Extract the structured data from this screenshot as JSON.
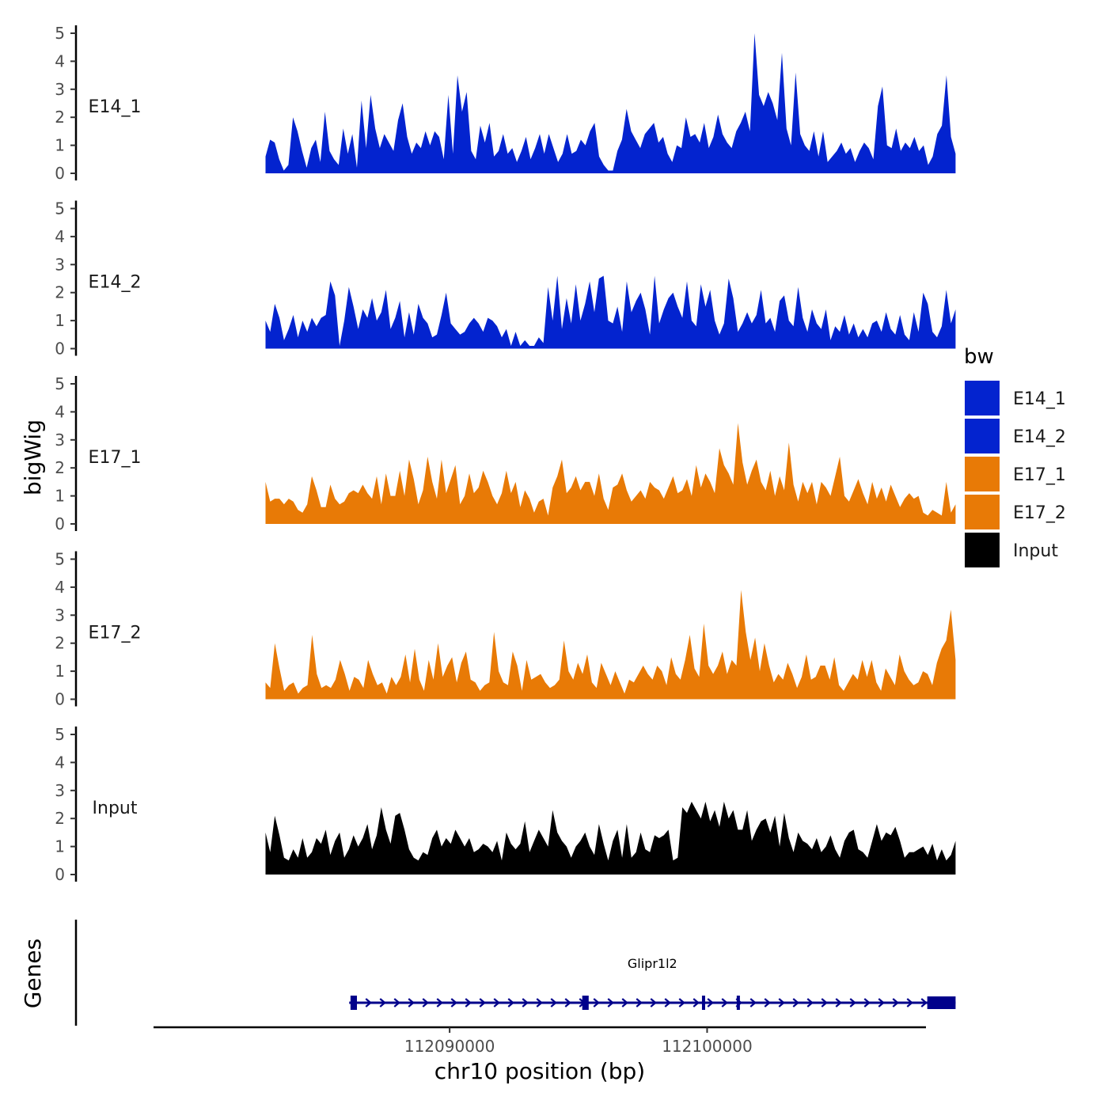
{
  "chart_data": {
    "type": "area",
    "y_axis_title": "bigWig",
    "gene_axis_title": "Genes",
    "x_axis_title": "chr10 position (bp)",
    "x_range": [
      112078500,
      112108500
    ],
    "region_start": 112082850,
    "region_end": 112109650,
    "x_ticks": [
      {
        "value": 112090000,
        "label": "112090000"
      },
      {
        "value": 112100000,
        "label": "112100000"
      }
    ],
    "ylim": [
      0,
      5
    ],
    "y_ticks": [
      {
        "value": 0,
        "label": "0"
      },
      {
        "value": 1,
        "label": "1"
      },
      {
        "value": 2,
        "label": "2"
      },
      {
        "value": 3,
        "label": "3"
      },
      {
        "value": 4,
        "label": "4"
      },
      {
        "value": 5,
        "label": "5"
      }
    ],
    "series": [
      {
        "name": "E14_1",
        "color": "#0323CF",
        "values": [
          0.6,
          1.2,
          1.1,
          0.5,
          0.1,
          0.3,
          2.0,
          1.5,
          0.8,
          0.2,
          0.9,
          1.2,
          0.4,
          2.2,
          0.8,
          0.5,
          0.3,
          1.6,
          0.7,
          1.4,
          0.2,
          2.6,
          0.9,
          2.8,
          1.6,
          0.9,
          1.4,
          1.1,
          0.8,
          1.9,
          2.5,
          1.3,
          0.7,
          1.1,
          0.9,
          1.5,
          1.0,
          1.5,
          1.3,
          0.5,
          2.8,
          0.7,
          3.5,
          2.2,
          2.9,
          0.8,
          0.5,
          1.7,
          1.1,
          1.8,
          0.6,
          0.8,
          1.4,
          0.7,
          0.9,
          0.4,
          0.8,
          1.3,
          0.5,
          0.9,
          1.4,
          0.7,
          1.4,
          0.9,
          0.4,
          0.7,
          1.4,
          0.7,
          0.8,
          1.2,
          1.0,
          1.5,
          1.8,
          0.6,
          0.3,
          0.1,
          0.1,
          0.8,
          1.2,
          2.3,
          1.5,
          1.2,
          0.9,
          1.4,
          1.6,
          1.8,
          1.1,
          1.3,
          0.7,
          0.4,
          1.0,
          0.9,
          2.0,
          1.3,
          1.4,
          1.1,
          1.8,
          0.9,
          1.3,
          2.1,
          1.4,
          1.1,
          0.9,
          1.5,
          1.8,
          2.2,
          1.5,
          5.0,
          2.8,
          2.4,
          2.9,
          2.5,
          1.9,
          4.3,
          1.6,
          1.0,
          3.6,
          1.4,
          1.0,
          0.8,
          1.5,
          0.6,
          1.5,
          0.4,
          0.6,
          0.8,
          1.1,
          0.7,
          0.9,
          0.4,
          0.8,
          1.1,
          0.9,
          0.5,
          2.4,
          3.1,
          1.0,
          0.9,
          1.6,
          0.8,
          1.1,
          0.9,
          1.3,
          0.8,
          1.0,
          0.3,
          0.6,
          1.4,
          1.7,
          3.5,
          1.3,
          0.7
        ]
      },
      {
        "name": "E14_2",
        "color": "#0323CF",
        "values": [
          1.0,
          0.6,
          1.6,
          1.1,
          0.3,
          0.7,
          1.2,
          0.4,
          1.0,
          0.6,
          1.1,
          0.8,
          1.1,
          1.2,
          2.4,
          1.9,
          0.1,
          1.0,
          2.2,
          1.5,
          0.7,
          1.4,
          1.1,
          1.8,
          1.0,
          1.3,
          2.1,
          0.7,
          1.1,
          1.7,
          0.4,
          1.3,
          0.5,
          1.6,
          1.1,
          0.9,
          0.4,
          0.5,
          1.2,
          2.0,
          0.9,
          0.7,
          0.5,
          0.6,
          0.9,
          1.1,
          0.9,
          0.6,
          1.1,
          1.0,
          0.8,
          0.4,
          0.7,
          0.1,
          0.6,
          0.1,
          0.3,
          0.1,
          0.1,
          0.4,
          0.2,
          2.2,
          1.0,
          2.6,
          0.7,
          1.8,
          0.9,
          2.3,
          1.0,
          1.6,
          2.4,
          1.3,
          2.5,
          2.6,
          1.0,
          0.9,
          1.5,
          0.6,
          2.4,
          1.3,
          1.7,
          2.0,
          1.4,
          0.5,
          2.6,
          0.9,
          1.4,
          1.8,
          2.0,
          1.5,
          1.1,
          2.4,
          1.0,
          0.8,
          2.3,
          1.5,
          2.1,
          1.0,
          0.5,
          0.9,
          2.5,
          1.8,
          0.6,
          0.9,
          1.3,
          0.9,
          1.2,
          2.1,
          0.9,
          1.1,
          0.6,
          1.7,
          1.9,
          1.0,
          0.8,
          2.2,
          1.1,
          0.6,
          1.4,
          0.9,
          0.7,
          1.4,
          0.3,
          0.8,
          0.6,
          1.2,
          0.5,
          0.9,
          0.4,
          0.7,
          0.4,
          0.9,
          1.0,
          0.6,
          1.3,
          0.7,
          0.5,
          1.2,
          0.5,
          0.3,
          1.3,
          0.6,
          2.0,
          1.6,
          0.6,
          0.4,
          0.8,
          2.1,
          0.9,
          1.4
        ]
      },
      {
        "name": "E17_1",
        "color": "#E87A06",
        "values": [
          1.5,
          0.8,
          0.9,
          0.9,
          0.7,
          0.9,
          0.8,
          0.5,
          0.4,
          0.7,
          1.7,
          1.2,
          0.6,
          0.6,
          1.4,
          0.9,
          0.7,
          0.8,
          1.1,
          1.2,
          1.1,
          1.4,
          1.1,
          0.9,
          1.7,
          0.7,
          1.8,
          1.0,
          1.0,
          1.9,
          1.0,
          2.3,
          1.6,
          0.7,
          1.2,
          2.4,
          1.5,
          0.9,
          2.3,
          1.1,
          1.6,
          2.1,
          0.7,
          1.0,
          1.8,
          1.1,
          1.3,
          1.9,
          1.5,
          1.0,
          0.7,
          1.1,
          1.9,
          1.1,
          1.5,
          0.6,
          1.2,
          0.9,
          0.4,
          0.8,
          0.9,
          0.3,
          1.3,
          1.7,
          2.3,
          1.1,
          1.3,
          1.7,
          1.2,
          1.5,
          1.5,
          1.0,
          1.8,
          0.9,
          0.5,
          1.3,
          1.4,
          1.8,
          1.2,
          0.8,
          1.0,
          1.2,
          0.9,
          1.5,
          1.3,
          1.2,
          0.9,
          1.3,
          1.7,
          1.1,
          1.2,
          1.6,
          1.0,
          2.1,
          1.3,
          1.8,
          1.5,
          1.1,
          2.7,
          2.1,
          1.8,
          1.4,
          3.6,
          2.2,
          1.4,
          1.9,
          2.3,
          1.5,
          1.2,
          1.9,
          1.0,
          1.7,
          1.2,
          2.9,
          1.4,
          0.8,
          1.5,
          1.1,
          1.5,
          0.7,
          1.5,
          1.3,
          1.0,
          1.7,
          2.4,
          1.0,
          0.8,
          1.2,
          1.6,
          1.1,
          0.7,
          1.5,
          0.9,
          1.3,
          0.8,
          1.4,
          1.0,
          0.6,
          0.9,
          1.1,
          0.9,
          1.0,
          0.4,
          0.3,
          0.5,
          0.4,
          0.3,
          1.5,
          0.4,
          0.7
        ]
      },
      {
        "name": "E17_2",
        "color": "#E87A06",
        "values": [
          0.6,
          0.4,
          2.0,
          1.1,
          0.3,
          0.5,
          0.6,
          0.2,
          0.4,
          0.5,
          2.3,
          0.9,
          0.4,
          0.5,
          0.4,
          0.7,
          1.4,
          0.9,
          0.3,
          0.8,
          0.7,
          0.4,
          1.4,
          0.9,
          0.5,
          0.6,
          0.2,
          0.8,
          0.5,
          0.8,
          1.6,
          0.6,
          1.8,
          0.7,
          0.3,
          1.4,
          0.7,
          2.0,
          0.8,
          1.2,
          1.5,
          0.6,
          1.3,
          1.7,
          0.7,
          0.6,
          0.3,
          0.5,
          0.6,
          2.4,
          1.0,
          0.6,
          0.5,
          1.7,
          1.2,
          0.3,
          1.4,
          0.7,
          0.8,
          0.9,
          0.6,
          0.4,
          0.5,
          0.7,
          2.1,
          1.0,
          0.7,
          1.3,
          0.9,
          1.6,
          0.6,
          0.4,
          1.3,
          0.9,
          0.5,
          1.0,
          0.6,
          0.2,
          0.7,
          0.6,
          0.9,
          1.2,
          0.9,
          0.7,
          1.2,
          1.0,
          0.5,
          1.5,
          0.9,
          0.7,
          1.4,
          2.3,
          1.1,
          0.8,
          2.7,
          1.2,
          0.9,
          1.2,
          1.7,
          0.9,
          1.4,
          1.2,
          3.9,
          2.4,
          1.4,
          2.2,
          1.0,
          2.0,
          1.2,
          0.6,
          0.9,
          0.7,
          1.3,
          0.9,
          0.4,
          0.8,
          1.6,
          0.7,
          0.8,
          1.2,
          1.2,
          0.7,
          1.5,
          0.5,
          0.3,
          0.6,
          0.9,
          0.7,
          1.4,
          0.8,
          1.4,
          0.6,
          0.3,
          1.1,
          0.8,
          0.5,
          1.6,
          1.0,
          0.7,
          0.5,
          0.6,
          1.0,
          0.9,
          0.5,
          1.3,
          1.8,
          2.1,
          3.2,
          1.4
        ]
      },
      {
        "name": "Input",
        "color": "#000000",
        "values": [
          1.5,
          0.8,
          2.1,
          1.4,
          0.6,
          0.5,
          0.9,
          0.6,
          1.3,
          0.6,
          0.8,
          1.3,
          1.1,
          1.6,
          0.7,
          1.2,
          1.5,
          0.6,
          0.9,
          1.4,
          1.0,
          1.3,
          1.8,
          0.9,
          1.4,
          2.4,
          1.6,
          1.1,
          2.1,
          2.2,
          1.6,
          0.9,
          0.6,
          0.5,
          0.8,
          0.7,
          1.3,
          1.6,
          1.0,
          1.3,
          1.1,
          1.6,
          1.3,
          1.0,
          1.3,
          0.8,
          0.9,
          1.1,
          1.0,
          0.8,
          1.2,
          0.5,
          1.5,
          1.1,
          0.9,
          1.1,
          1.9,
          0.8,
          1.2,
          1.6,
          1.3,
          1.0,
          2.3,
          1.5,
          1.2,
          1.0,
          0.6,
          1.0,
          1.2,
          1.5,
          1.0,
          0.7,
          1.8,
          1.1,
          0.5,
          1.2,
          1.6,
          0.6,
          1.8,
          0.6,
          0.8,
          1.5,
          0.9,
          0.8,
          1.4,
          1.3,
          1.4,
          1.6,
          0.5,
          0.6,
          2.4,
          2.2,
          2.6,
          2.3,
          2.0,
          2.6,
          1.9,
          2.3,
          1.7,
          2.6,
          2.0,
          2.3,
          1.6,
          1.6,
          2.3,
          1.2,
          1.6,
          1.9,
          2.0,
          1.5,
          2.1,
          1.0,
          2.2,
          1.3,
          0.8,
          1.5,
          1.2,
          1.1,
          0.9,
          1.3,
          0.8,
          1.0,
          1.4,
          0.9,
          0.6,
          1.2,
          1.5,
          1.6,
          0.9,
          0.8,
          0.6,
          1.2,
          1.8,
          1.2,
          1.5,
          1.4,
          1.7,
          1.2,
          0.6,
          0.8,
          0.8,
          0.9,
          1.0,
          0.7,
          1.1,
          0.5,
          0.9,
          0.5,
          0.7,
          1.2
        ]
      }
    ],
    "legend": {
      "title": "bw",
      "position": "right",
      "entries": [
        {
          "label": "E14_1",
          "color": "#0323CF"
        },
        {
          "label": "E14_2",
          "color": "#0323CF"
        },
        {
          "label": "E17_1",
          "color": "#E87A06"
        },
        {
          "label": "E17_2",
          "color": "#E87A06"
        },
        {
          "label": "Input",
          "color": "#000000"
        }
      ]
    },
    "gene": {
      "name": "Glipr1l2",
      "color": "#00008B",
      "start": 112086100,
      "end": 112109650,
      "strand": "+",
      "exons": [
        {
          "start": 112086150,
          "end": 112086400
        },
        {
          "start": 112095150,
          "end": 112095400
        },
        {
          "start": 112099800,
          "end": 112099900
        },
        {
          "start": 112101150,
          "end": 112101250
        },
        {
          "start": 112108550,
          "end": 112109650
        }
      ]
    }
  }
}
